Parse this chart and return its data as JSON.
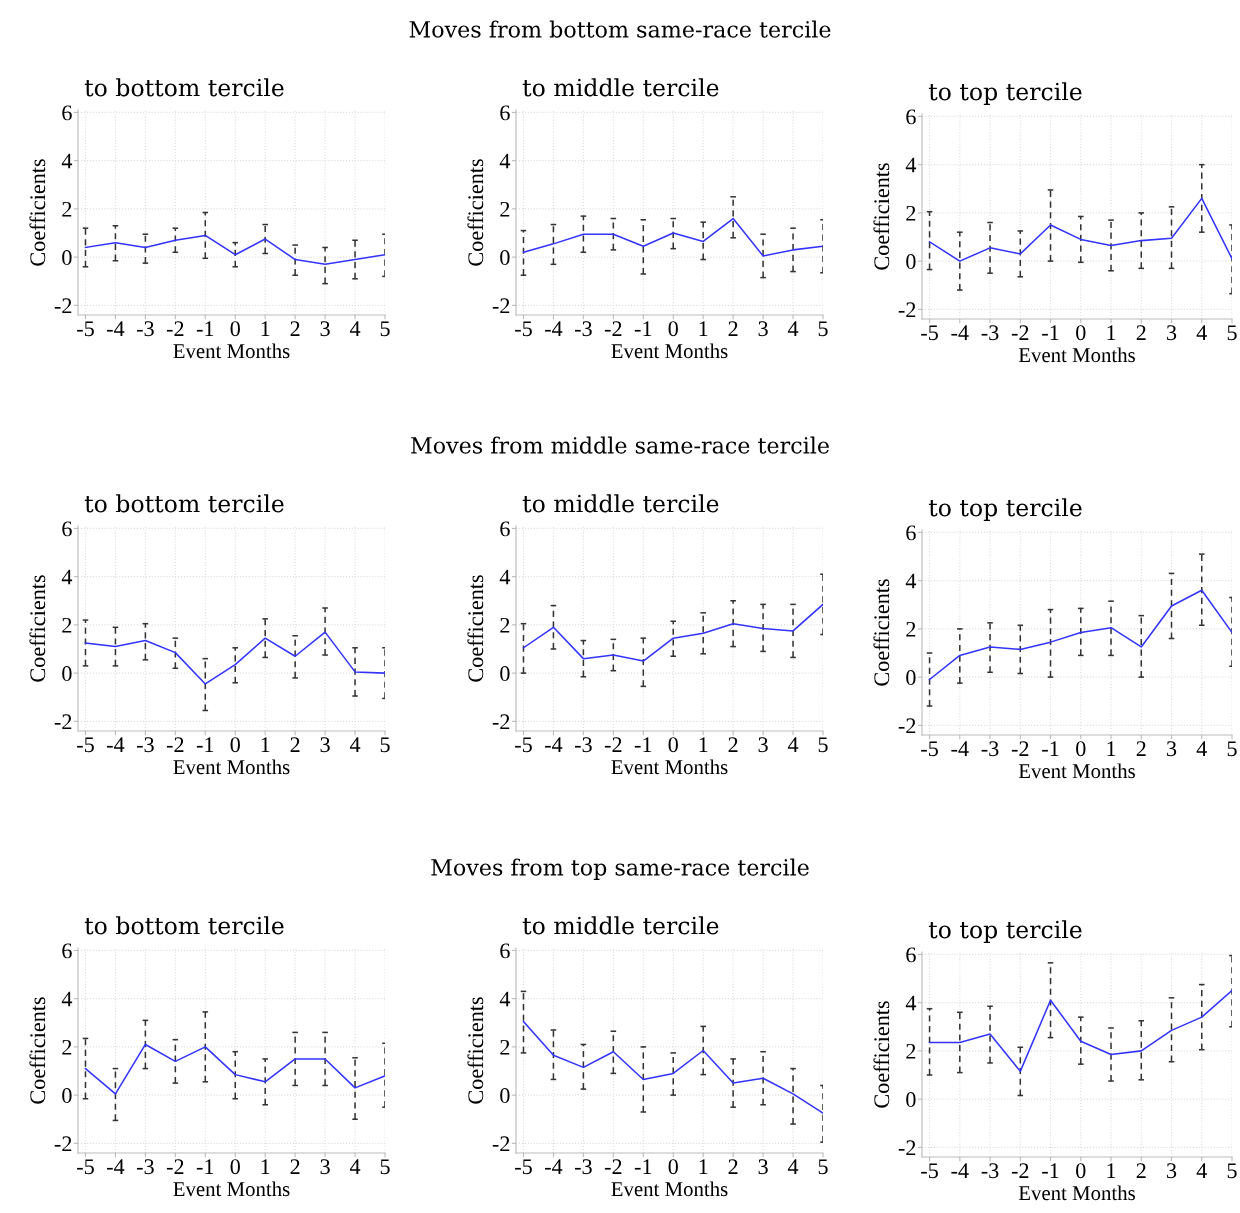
{
  "chart_data": [
    {
      "type": "line",
      "title": "to bottom tercile",
      "annotations": [
        "Moves from bottom same-race tercile"
      ],
      "xlabel": "Event Months",
      "ylabel": "Coefficients",
      "x": [
        -5,
        -4,
        -3,
        -2,
        -1,
        0,
        1,
        2,
        3,
        4,
        5
      ],
      "xlim": [
        -5.25,
        5
      ],
      "xticks": [
        -5,
        -4,
        -3,
        -2,
        -1,
        0,
        1,
        2,
        3,
        4,
        5
      ],
      "ylim": [
        -2.4,
        6.1
      ],
      "yticks": [
        -2,
        0,
        2,
        4,
        6
      ],
      "grid": true,
      "marker": "none",
      "line_style": "solid",
      "series": [
        {
          "color": "#3333ff",
          "values": [
            0.4,
            0.6,
            0.4,
            0.7,
            0.9,
            0.1,
            0.75,
            -0.1,
            -0.3,
            -0.1,
            0.1
          ],
          "errors": [
            [
              -0.4,
              1.2
            ],
            [
              -0.15,
              1.3
            ],
            [
              -0.25,
              0.95
            ],
            [
              0.2,
              1.2
            ],
            [
              -0.05,
              1.85
            ],
            [
              -0.4,
              0.6
            ],
            [
              0.15,
              1.35
            ],
            [
              -0.75,
              0.5
            ],
            [
              -1.1,
              0.4
            ],
            [
              -0.9,
              0.7
            ],
            [
              -0.8,
              0.95
            ]
          ]
        }
      ]
    },
    {
      "type": "line",
      "title": "to middle tercile",
      "xlabel": "Event Months",
      "ylabel": "Coefficients",
      "x": [
        -5,
        -4,
        -3,
        -2,
        -1,
        0,
        1,
        2,
        3,
        4,
        5
      ],
      "xlim": [
        -5.25,
        5
      ],
      "xticks": [
        -5,
        -4,
        -3,
        -2,
        -1,
        0,
        1,
        2,
        3,
        4,
        5
      ],
      "ylim": [
        -2.4,
        6.1
      ],
      "yticks": [
        -2,
        0,
        2,
        4,
        6
      ],
      "grid": true,
      "marker": "none",
      "line_style": "solid",
      "series": [
        {
          "color": "#3333ff",
          "values": [
            0.2,
            0.55,
            0.95,
            0.95,
            0.45,
            1.0,
            0.65,
            1.6,
            0.05,
            0.3,
            0.45
          ],
          "errors": [
            [
              -0.75,
              1.1
            ],
            [
              -0.3,
              1.35
            ],
            [
              0.2,
              1.7
            ],
            [
              0.3,
              1.6
            ],
            [
              -0.7,
              1.55
            ],
            [
              0.35,
              1.6
            ],
            [
              -0.1,
              1.45
            ],
            [
              0.8,
              2.5
            ],
            [
              -0.85,
              0.95
            ],
            [
              -0.6,
              1.2
            ],
            [
              -0.65,
              1.55
            ]
          ]
        }
      ]
    },
    {
      "type": "line",
      "title": "to top tercile",
      "xlabel": "Event Months",
      "ylabel": "Coefficients",
      "x": [
        -5,
        -4,
        -3,
        -2,
        -1,
        0,
        1,
        2,
        3,
        4,
        5
      ],
      "xlim": [
        -5.25,
        5
      ],
      "xticks": [
        -5,
        -4,
        -3,
        -2,
        -1,
        0,
        1,
        2,
        3,
        4,
        5
      ],
      "ylim": [
        -2.4,
        6.1
      ],
      "yticks": [
        -2,
        0,
        2,
        4,
        6
      ],
      "grid": true,
      "marker": "none",
      "line_style": "solid",
      "series": [
        {
          "color": "#3333ff",
          "values": [
            0.8,
            0.0,
            0.55,
            0.3,
            1.5,
            0.9,
            0.65,
            0.85,
            0.95,
            2.6,
            0.1
          ],
          "errors": [
            [
              -0.35,
              2.05
            ],
            [
              -1.2,
              1.2
            ],
            [
              -0.5,
              1.6
            ],
            [
              -0.65,
              1.25
            ],
            [
              0.0,
              2.95
            ],
            [
              -0.05,
              1.85
            ],
            [
              -0.4,
              1.7
            ],
            [
              -0.3,
              2.0
            ],
            [
              -0.3,
              2.25
            ],
            [
              1.2,
              4.0
            ],
            [
              -1.35,
              1.5
            ]
          ]
        }
      ]
    },
    {
      "type": "line",
      "title": "to bottom tercile",
      "annotations": [
        "Moves from middle same-race tercile"
      ],
      "xlabel": "Event Months",
      "ylabel": "Coefficients",
      "x": [
        -5,
        -4,
        -3,
        -2,
        -1,
        0,
        1,
        2,
        3,
        4,
        5
      ],
      "xlim": [
        -5.25,
        5
      ],
      "xticks": [
        -5,
        -4,
        -3,
        -2,
        -1,
        0,
        1,
        2,
        3,
        4,
        5
      ],
      "ylim": [
        -2.4,
        6.1
      ],
      "yticks": [
        -2,
        0,
        2,
        4,
        6
      ],
      "grid": true,
      "marker": "none",
      "line_style": "solid",
      "series": [
        {
          "color": "#3333ff",
          "values": [
            1.25,
            1.1,
            1.35,
            0.85,
            -0.45,
            0.35,
            1.45,
            0.7,
            1.7,
            0.05,
            0.0
          ],
          "errors": [
            [
              0.3,
              2.2
            ],
            [
              0.3,
              1.9
            ],
            [
              0.55,
              2.05
            ],
            [
              0.2,
              1.45
            ],
            [
              -1.55,
              0.6
            ],
            [
              -0.4,
              1.05
            ],
            [
              0.65,
              2.25
            ],
            [
              -0.2,
              1.55
            ],
            [
              0.75,
              2.7
            ],
            [
              -0.95,
              1.05
            ],
            [
              -1.05,
              1.05
            ]
          ]
        }
      ]
    },
    {
      "type": "line",
      "title": "to middle tercile",
      "xlabel": "Event Months",
      "ylabel": "Coefficients",
      "x": [
        -5,
        -4,
        -3,
        -2,
        -1,
        0,
        1,
        2,
        3,
        4,
        5
      ],
      "xlim": [
        -5.25,
        5
      ],
      "xticks": [
        -5,
        -4,
        -3,
        -2,
        -1,
        0,
        1,
        2,
        3,
        4,
        5
      ],
      "ylim": [
        -2.4,
        6.1
      ],
      "yticks": [
        -2,
        0,
        2,
        4,
        6
      ],
      "grid": true,
      "marker": "none",
      "line_style": "solid",
      "series": [
        {
          "color": "#3333ff",
          "values": [
            1.05,
            1.9,
            0.6,
            0.75,
            0.5,
            1.45,
            1.65,
            2.05,
            1.85,
            1.75,
            2.85
          ],
          "errors": [
            [
              0.0,
              2.05
            ],
            [
              1.0,
              2.8
            ],
            [
              -0.15,
              1.35
            ],
            [
              0.1,
              1.4
            ],
            [
              -0.55,
              1.45
            ],
            [
              0.7,
              2.15
            ],
            [
              0.8,
              2.5
            ],
            [
              1.1,
              3.0
            ],
            [
              0.9,
              2.85
            ],
            [
              0.65,
              2.85
            ],
            [
              1.6,
              4.1
            ]
          ]
        }
      ]
    },
    {
      "type": "line",
      "title": "to top tercile",
      "xlabel": "Event Months",
      "ylabel": "Coefficients",
      "x": [
        -5,
        -4,
        -3,
        -2,
        -1,
        0,
        1,
        2,
        3,
        4,
        5
      ],
      "xlim": [
        -5.25,
        5
      ],
      "xticks": [
        -5,
        -4,
        -3,
        -2,
        -1,
        0,
        1,
        2,
        3,
        4,
        5
      ],
      "ylim": [
        -2.4,
        6.1
      ],
      "yticks": [
        -2,
        0,
        2,
        4,
        6
      ],
      "grid": true,
      "marker": "none",
      "line_style": "solid",
      "series": [
        {
          "color": "#3333ff",
          "values": [
            -0.1,
            0.9,
            1.25,
            1.15,
            1.45,
            1.85,
            2.05,
            1.25,
            2.95,
            3.6,
            1.85
          ],
          "errors": [
            [
              -1.2,
              1.0
            ],
            [
              -0.25,
              2.0
            ],
            [
              0.2,
              2.25
            ],
            [
              0.15,
              2.15
            ],
            [
              0.0,
              2.8
            ],
            [
              0.9,
              2.85
            ],
            [
              0.9,
              3.15
            ],
            [
              0.0,
              2.55
            ],
            [
              1.6,
              4.3
            ],
            [
              2.15,
              5.1
            ],
            [
              0.45,
              3.3
            ]
          ]
        }
      ]
    },
    {
      "type": "line",
      "title": "to bottom tercile",
      "annotations": [
        "Moves from top same-race tercile"
      ],
      "xlabel": "Event Months",
      "ylabel": "Coefficients",
      "x": [
        -5,
        -4,
        -3,
        -2,
        -1,
        0,
        1,
        2,
        3,
        4,
        5
      ],
      "xlim": [
        -5.25,
        5
      ],
      "xticks": [
        -5,
        -4,
        -3,
        -2,
        -1,
        0,
        1,
        2,
        3,
        4,
        5
      ],
      "ylim": [
        -2.4,
        6.1
      ],
      "yticks": [
        -2,
        0,
        2,
        4,
        6
      ],
      "grid": true,
      "marker": "none",
      "line_style": "solid",
      "series": [
        {
          "color": "#3333ff",
          "values": [
            1.1,
            0.05,
            2.1,
            1.4,
            2.0,
            0.85,
            0.55,
            1.5,
            1.5,
            0.3,
            0.8
          ],
          "errors": [
            [
              -0.15,
              2.35
            ],
            [
              -1.05,
              1.1
            ],
            [
              1.1,
              3.1
            ],
            [
              0.5,
              2.3
            ],
            [
              0.55,
              3.45
            ],
            [
              -0.15,
              1.8
            ],
            [
              -0.4,
              1.5
            ],
            [
              0.4,
              2.6
            ],
            [
              0.4,
              2.6
            ],
            [
              -1.0,
              1.55
            ],
            [
              -0.5,
              2.15
            ]
          ]
        }
      ]
    },
    {
      "type": "line",
      "title": "to middle tercile",
      "xlabel": "Event Months",
      "ylabel": "Coefficients",
      "x": [
        -5,
        -4,
        -3,
        -2,
        -1,
        0,
        1,
        2,
        3,
        4,
        5
      ],
      "xlim": [
        -5.25,
        5
      ],
      "xticks": [
        -5,
        -4,
        -3,
        -2,
        -1,
        0,
        1,
        2,
        3,
        4,
        5
      ],
      "ylim": [
        -2.4,
        6.1
      ],
      "yticks": [
        -2,
        0,
        2,
        4,
        6
      ],
      "grid": true,
      "marker": "none",
      "line_style": "solid",
      "series": [
        {
          "color": "#3333ff",
          "values": [
            3.05,
            1.65,
            1.15,
            1.8,
            0.65,
            0.9,
            1.85,
            0.5,
            0.7,
            0.05,
            -0.75
          ],
          "errors": [
            [
              1.75,
              4.3
            ],
            [
              0.65,
              2.7
            ],
            [
              0.25,
              2.1
            ],
            [
              0.9,
              2.65
            ],
            [
              -0.7,
              2.0
            ],
            [
              0.0,
              1.75
            ],
            [
              0.85,
              2.85
            ],
            [
              -0.5,
              1.5
            ],
            [
              -0.4,
              1.8
            ],
            [
              -1.2,
              1.1
            ],
            [
              -1.95,
              0.4
            ]
          ]
        }
      ]
    },
    {
      "type": "line",
      "title": "to top tercile",
      "xlabel": "Event Months",
      "ylabel": "Coefficients",
      "x": [
        -5,
        -4,
        -3,
        -2,
        -1,
        0,
        1,
        2,
        3,
        4,
        5
      ],
      "xlim": [
        -5.25,
        5
      ],
      "xticks": [
        -5,
        -4,
        -3,
        -2,
        -1,
        0,
        1,
        2,
        3,
        4,
        5
      ],
      "ylim": [
        -2.4,
        6.1
      ],
      "yticks": [
        -2,
        0,
        2,
        4,
        6
      ],
      "grid": true,
      "marker": "none",
      "line_style": "solid",
      "series": [
        {
          "color": "#3333ff",
          "values": [
            2.35,
            2.35,
            2.7,
            1.15,
            4.1,
            2.4,
            1.85,
            2.0,
            2.85,
            3.4,
            4.5
          ],
          "errors": [
            [
              1.0,
              3.75
            ],
            [
              1.1,
              3.6
            ],
            [
              1.5,
              3.85
            ],
            [
              0.15,
              2.15
            ],
            [
              2.55,
              5.65
            ],
            [
              1.45,
              3.4
            ],
            [
              0.75,
              2.95
            ],
            [
              0.8,
              3.25
            ],
            [
              1.55,
              4.2
            ],
            [
              2.05,
              4.75
            ],
            [
              3.0,
              5.95
            ]
          ]
        }
      ]
    }
  ]
}
